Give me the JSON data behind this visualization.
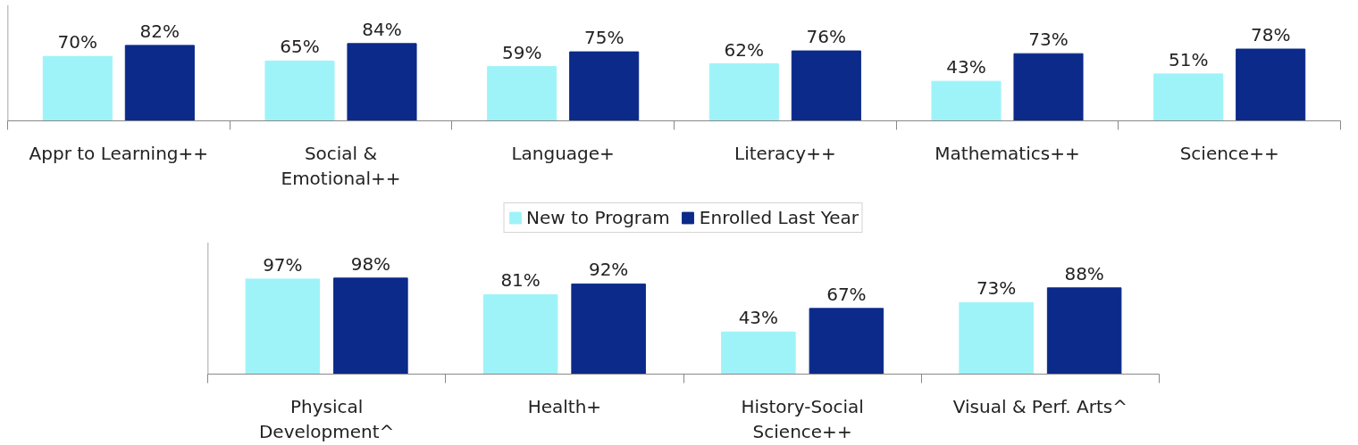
{
  "chart_data": [
    {
      "type": "bar",
      "categories": [
        "Appr to Learning++",
        "Social &\nEmotional++",
        "Language+",
        "Literacy++",
        "Mathematics++",
        "Science++"
      ],
      "series": [
        {
          "color": "#9ef3f8",
          "values": [
            70,
            65,
            59,
            62,
            43,
            51
          ],
          "value_labels": [
            "70%",
            "65%",
            "59%",
            "62%",
            "43%",
            "51%"
          ]
        },
        {
          "color": "#0b2a8a",
          "values": [
            82,
            84,
            75,
            76,
            73,
            78
          ],
          "value_labels": [
            "82%",
            "84%",
            "75%",
            "76%",
            "73%",
            "78%"
          ]
        }
      ],
      "grid": false
    },
    {
      "type": "bar",
      "categories": [
        "Physical\nDevelopment^",
        "Health+",
        "History-Social\nScience++",
        "Visual & Perf. Arts^"
      ],
      "series": [
        {
          "name": "New to Program",
          "color": "#9ef3f8",
          "values": [
            97,
            81,
            43,
            73
          ],
          "value_labels": [
            "97%",
            "81%",
            "43%",
            "73%"
          ]
        },
        {
          "name": "Enrolled Last Year",
          "color": "#0b2a8a",
          "values": [
            98,
            92,
            67,
            88
          ],
          "value_labels": [
            "98%",
            "92%",
            "67%",
            "88%"
          ]
        }
      ],
      "legend": "top",
      "grid": false
    }
  ]
}
